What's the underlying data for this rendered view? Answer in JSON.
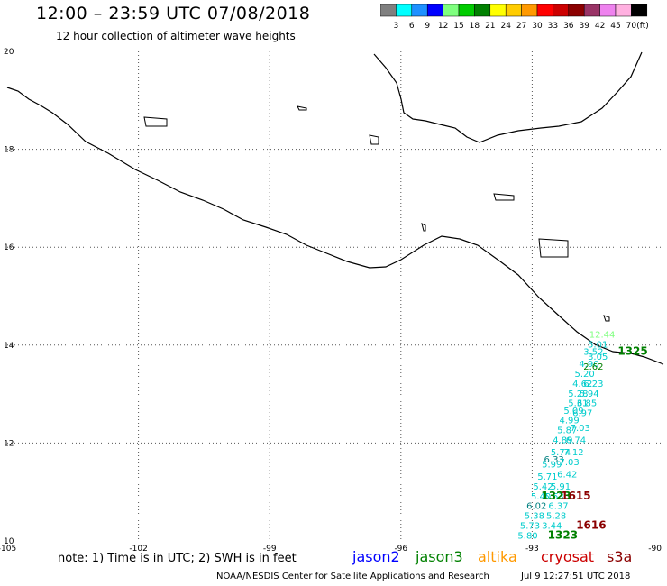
{
  "header": {
    "title": "12:00 – 23:59 UTC 07/08/2018",
    "subtitle": "12 hour collection of altimeter wave heights"
  },
  "colorbar": {
    "unit": "(ft)",
    "colors": [
      "#7f7f7f",
      "#00ffff",
      "#1e90ff",
      "#0000ff",
      "#7fff7f",
      "#00cc00",
      "#008000",
      "#ffff00",
      "#ffcc00",
      "#ff9900",
      "#ff0000",
      "#cc0000",
      "#8b0000",
      "#993366",
      "#ee82ee",
      "#ffb0e0",
      "#000000"
    ],
    "labels": [
      "3",
      "6",
      "9",
      "12",
      "15",
      "18",
      "21",
      "24",
      "27",
      "30",
      "33",
      "36",
      "39",
      "42",
      "45",
      "70"
    ]
  },
  "map": {
    "lon_range": [
      -105,
      -90
    ],
    "lat_range": [
      10,
      20
    ],
    "lon_ticks": [
      "-105",
      "-102",
      "-99",
      "-96",
      "-93",
      "-90"
    ],
    "lon_tick_values": [
      -105,
      -102,
      -99,
      -96,
      -93,
      -90
    ],
    "lat_ticks": [
      "20",
      "18",
      "16",
      "14",
      "12",
      "10"
    ],
    "lat_tick_values": [
      20,
      18,
      16,
      14,
      12,
      10
    ],
    "grid": true,
    "wave_heights": [
      {
        "text": "12.44",
        "lon": -91.4,
        "lat": 14.15,
        "color": "#7fff7f"
      },
      {
        "text": "5.01",
        "lon": -91.5,
        "lat": 13.95,
        "color": "#00cccc"
      },
      {
        "text": "3.52",
        "lon": -91.6,
        "lat": 13.8,
        "color": "#00cccc"
      },
      {
        "text": "3.05",
        "lon": -91.5,
        "lat": 13.7,
        "color": "#00cccc"
      },
      {
        "text": "4.90",
        "lon": -91.7,
        "lat": 13.55,
        "color": "#00cccc"
      },
      {
        "text": "2.62",
        "lon": -91.6,
        "lat": 13.5,
        "color": "#008000"
      },
      {
        "text": "5.20",
        "lon": -91.8,
        "lat": 13.35,
        "color": "#00cccc"
      },
      {
        "text": "4.62",
        "lon": -91.85,
        "lat": 13.15,
        "color": "#00cccc"
      },
      {
        "text": "6.23",
        "lon": -91.6,
        "lat": 13.15,
        "color": "#00cccc"
      },
      {
        "text": "5.28",
        "lon": -91.95,
        "lat": 12.95,
        "color": "#00cccc"
      },
      {
        "text": "6.94",
        "lon": -91.7,
        "lat": 12.95,
        "color": "#00cccc"
      },
      {
        "text": "5.31",
        "lon": -91.95,
        "lat": 12.75,
        "color": "#00cccc"
      },
      {
        "text": "6.85",
        "lon": -91.75,
        "lat": 12.75,
        "color": "#00cccc"
      },
      {
        "text": "5.09",
        "lon": -92.05,
        "lat": 12.6,
        "color": "#00cccc"
      },
      {
        "text": "6.97",
        "lon": -91.85,
        "lat": 12.55,
        "color": "#00cccc"
      },
      {
        "text": "4.99",
        "lon": -92.15,
        "lat": 12.4,
        "color": "#00cccc"
      },
      {
        "text": "5.87",
        "lon": -92.2,
        "lat": 12.2,
        "color": "#00cccc"
      },
      {
        "text": "7.03",
        "lon": -91.9,
        "lat": 12.25,
        "color": "#00cccc"
      },
      {
        "text": "4.89",
        "lon": -92.3,
        "lat": 12.0,
        "color": "#00cccc"
      },
      {
        "text": "6.74",
        "lon": -92.0,
        "lat": 12.0,
        "color": "#00cccc"
      },
      {
        "text": "5.74",
        "lon": -92.35,
        "lat": 11.75,
        "color": "#00cccc"
      },
      {
        "text": "7.12",
        "lon": -92.05,
        "lat": 11.75,
        "color": "#00cccc"
      },
      {
        "text": "6.33",
        "lon": -92.5,
        "lat": 11.6,
        "color": "#008080"
      },
      {
        "text": "7.03",
        "lon": -92.15,
        "lat": 11.55,
        "color": "#00cccc"
      },
      {
        "text": "5.99",
        "lon": -92.55,
        "lat": 11.5,
        "color": "#00cccc"
      },
      {
        "text": "6.42",
        "lon": -92.2,
        "lat": 11.3,
        "color": "#00cccc"
      },
      {
        "text": "5.71",
        "lon": -92.65,
        "lat": 11.25,
        "color": "#00cccc"
      },
      {
        "text": "5.42",
        "lon": -92.75,
        "lat": 11.05,
        "color": "#00cccc"
      },
      {
        "text": "5.91",
        "lon": -92.35,
        "lat": 11.05,
        "color": "#00cccc"
      },
      {
        "text": "5.40",
        "lon": -92.8,
        "lat": 10.85,
        "color": "#00cccc"
      },
      {
        "text": "5.53",
        "lon": -92.5,
        "lat": 10.85,
        "color": "#00cccc"
      },
      {
        "text": "6.02",
        "lon": -92.9,
        "lat": 10.65,
        "color": "#008080"
      },
      {
        "text": "6.37",
        "lon": -92.4,
        "lat": 10.65,
        "color": "#00cccc"
      },
      {
        "text": "5.38",
        "lon": -92.95,
        "lat": 10.45,
        "color": "#00cccc"
      },
      {
        "text": "5.28",
        "lon": -92.45,
        "lat": 10.45,
        "color": "#00cccc"
      },
      {
        "text": "5.73",
        "lon": -93.05,
        "lat": 10.25,
        "color": "#00cccc"
      },
      {
        "text": "3.44",
        "lon": -92.55,
        "lat": 10.25,
        "color": "#00cccc"
      },
      {
        "text": "5.80",
        "lon": -93.1,
        "lat": 10.05,
        "color": "#00cccc"
      }
    ],
    "pass_times": [
      {
        "text": "1325",
        "lon": -90.7,
        "lat": 13.8,
        "color": "#008000"
      },
      {
        "text": "1323",
        "lon": -92.45,
        "lat": 10.85,
        "color": "#008000"
      },
      {
        "text": "1615",
        "lon": -92.0,
        "lat": 10.85,
        "color": "#8b0000"
      },
      {
        "text": "1616",
        "lon": -91.65,
        "lat": 10.25,
        "color": "#8b0000"
      },
      {
        "text": "1323",
        "lon": -92.3,
        "lat": 10.05,
        "color": "#008000"
      }
    ]
  },
  "footer": {
    "note": "note: 1) Time is in UTC; 2) SWH is in feet",
    "missions": [
      {
        "name": "jason2",
        "color": "#0000ff"
      },
      {
        "name": "jason3",
        "color": "#008000"
      },
      {
        "name": "altika",
        "color": "#ff9900"
      },
      {
        "name": "cryosat",
        "color": "#cc0000"
      },
      {
        "name": "s3a",
        "color": "#8b0000"
      }
    ],
    "credit": "NOAA/NESDIS Center for Satellite Applications and Research",
    "timestamp": "Jul  9 12:27:51 UTC 2018"
  }
}
